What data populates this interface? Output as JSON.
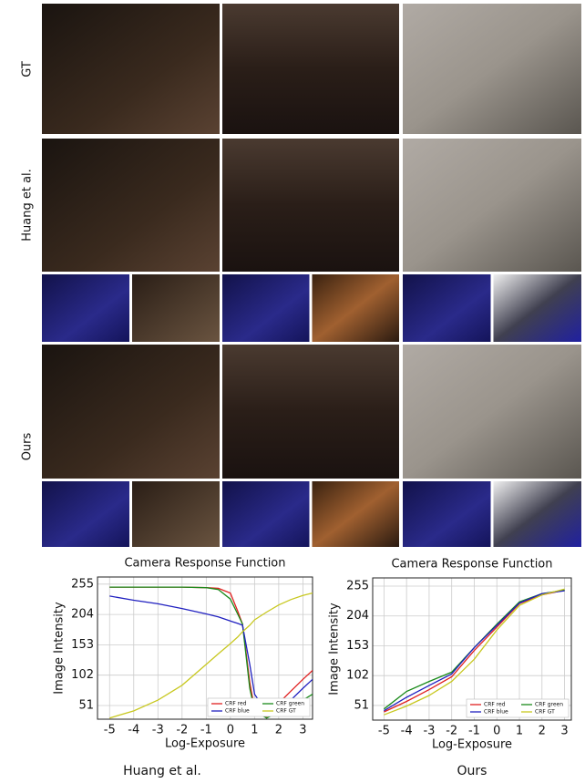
{
  "figure": {
    "row_labels": [
      "GT",
      "Huang et al.",
      "Ours"
    ]
  },
  "captions": [
    "Huang et al.",
    "Ours"
  ],
  "chart_data": [
    {
      "type": "line",
      "title": "Camera Response Function",
      "x_label": "Log-Exposure",
      "y_label": "Image Intensity",
      "x": [
        -5,
        -4,
        -3,
        -2,
        -1,
        -0.5,
        0,
        0.3,
        0.5,
        0.8,
        1,
        1.5,
        2,
        2.5,
        3,
        3.4
      ],
      "series": [
        {
          "name": "CRF red",
          "color": "#e02020",
          "values": [
            250,
            250,
            250,
            250,
            249,
            248,
            240,
            210,
            188,
            90,
            45,
            32,
            55,
            75,
            95,
            110
          ]
        },
        {
          "name": "CRF green",
          "color": "#1a8a1a",
          "values": [
            250,
            250,
            250,
            250,
            249,
            246,
            230,
            205,
            188,
            80,
            42,
            30,
            40,
            50,
            60,
            70
          ]
        },
        {
          "name": "CRF blue",
          "color": "#2020c0",
          "values": [
            235,
            228,
            222,
            214,
            205,
            200,
            193,
            189,
            186,
            120,
            70,
            40,
            45,
            60,
            80,
            95
          ]
        },
        {
          "name": "CRF GT",
          "color": "#c8c820",
          "values": [
            30,
            42,
            60,
            85,
            120,
            138,
            155,
            166,
            175,
            186,
            195,
            208,
            220,
            229,
            236,
            240
          ]
        }
      ],
      "xlim": [
        -5.5,
        3.4
      ],
      "ylim": [
        28,
        267
      ],
      "xticks": [
        -5,
        -4,
        -3,
        -2,
        -1,
        0,
        1,
        2,
        3
      ],
      "yticks": [
        51,
        102,
        153,
        204,
        255
      ],
      "grid": true,
      "legend": "lower right"
    },
    {
      "type": "line",
      "title": "Camera Response Function",
      "x_label": "Log-Exposure",
      "y_label": "Image Intensity",
      "x": [
        -5,
        -4,
        -3,
        -2,
        -1,
        0,
        1,
        2,
        3
      ],
      "series": [
        {
          "name": "CRF red",
          "color": "#e02020",
          "values": [
            40,
            58,
            78,
            100,
            145,
            185,
            225,
            240,
            248
          ]
        },
        {
          "name": "CRF green",
          "color": "#1a8a1a",
          "values": [
            45,
            75,
            92,
            108,
            150,
            190,
            228,
            242,
            248
          ]
        },
        {
          "name": "CRF blue",
          "color": "#2020c0",
          "values": [
            42,
            65,
            85,
            105,
            150,
            188,
            226,
            242,
            247
          ]
        },
        {
          "name": "CRF GT",
          "color": "#c8c820",
          "values": [
            35,
            50,
            68,
            92,
            130,
            180,
            222,
            240,
            250
          ]
        }
      ],
      "xlim": [
        -5.5,
        3.3
      ],
      "ylim": [
        26,
        269
      ],
      "xticks": [
        -5,
        -4,
        -3,
        -2,
        -1,
        0,
        1,
        2,
        3
      ],
      "yticks": [
        51,
        102,
        153,
        204,
        255
      ],
      "grid": true,
      "legend": "lower right"
    }
  ]
}
